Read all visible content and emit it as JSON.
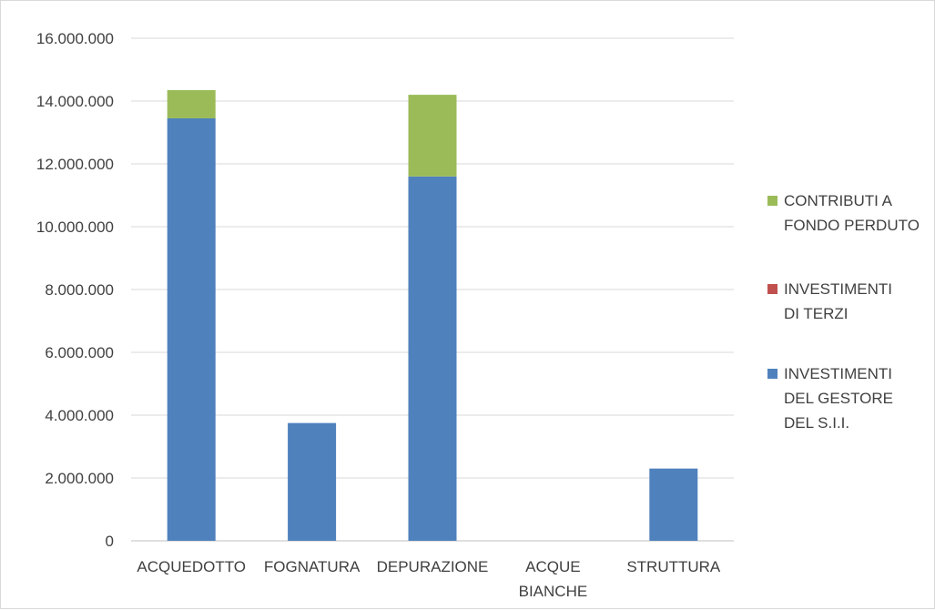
{
  "chart_data": {
    "type": "bar",
    "stacked": true,
    "categories": [
      [
        "ACQUEDOTTO"
      ],
      [
        "FOGNATURA"
      ],
      [
        "DEPURAZIONE"
      ],
      [
        "ACQUE",
        "BIANCHE"
      ],
      [
        "STRUTTURA"
      ]
    ],
    "series": [
      {
        "name": [
          "INVESTIMENTI",
          "DEL GESTORE",
          "DEL S.I.I."
        ],
        "color": "#4f81bd",
        "values": [
          13450000,
          3750000,
          11600000,
          0,
          2300000
        ]
      },
      {
        "name": [
          "INVESTIMENTI",
          "DI TERZI"
        ],
        "color": "#c0504d",
        "values": [
          0,
          0,
          0,
          0,
          0
        ]
      },
      {
        "name": [
          "CONTRIBUTI A",
          "FONDO PERDUTO"
        ],
        "color": "#9bbb59",
        "values": [
          900000,
          0,
          2600000,
          0,
          0
        ]
      }
    ],
    "yticks": [
      "0",
      "2.000.000",
      "4.000.000",
      "6.000.000",
      "8.000.000",
      "10.000.000",
      "12.000.000",
      "14.000.000",
      "16.000.000"
    ],
    "ylim": [
      0,
      16000000
    ],
    "grid": true,
    "legend_position": "right",
    "legend_order": [
      2,
      1,
      0
    ]
  }
}
